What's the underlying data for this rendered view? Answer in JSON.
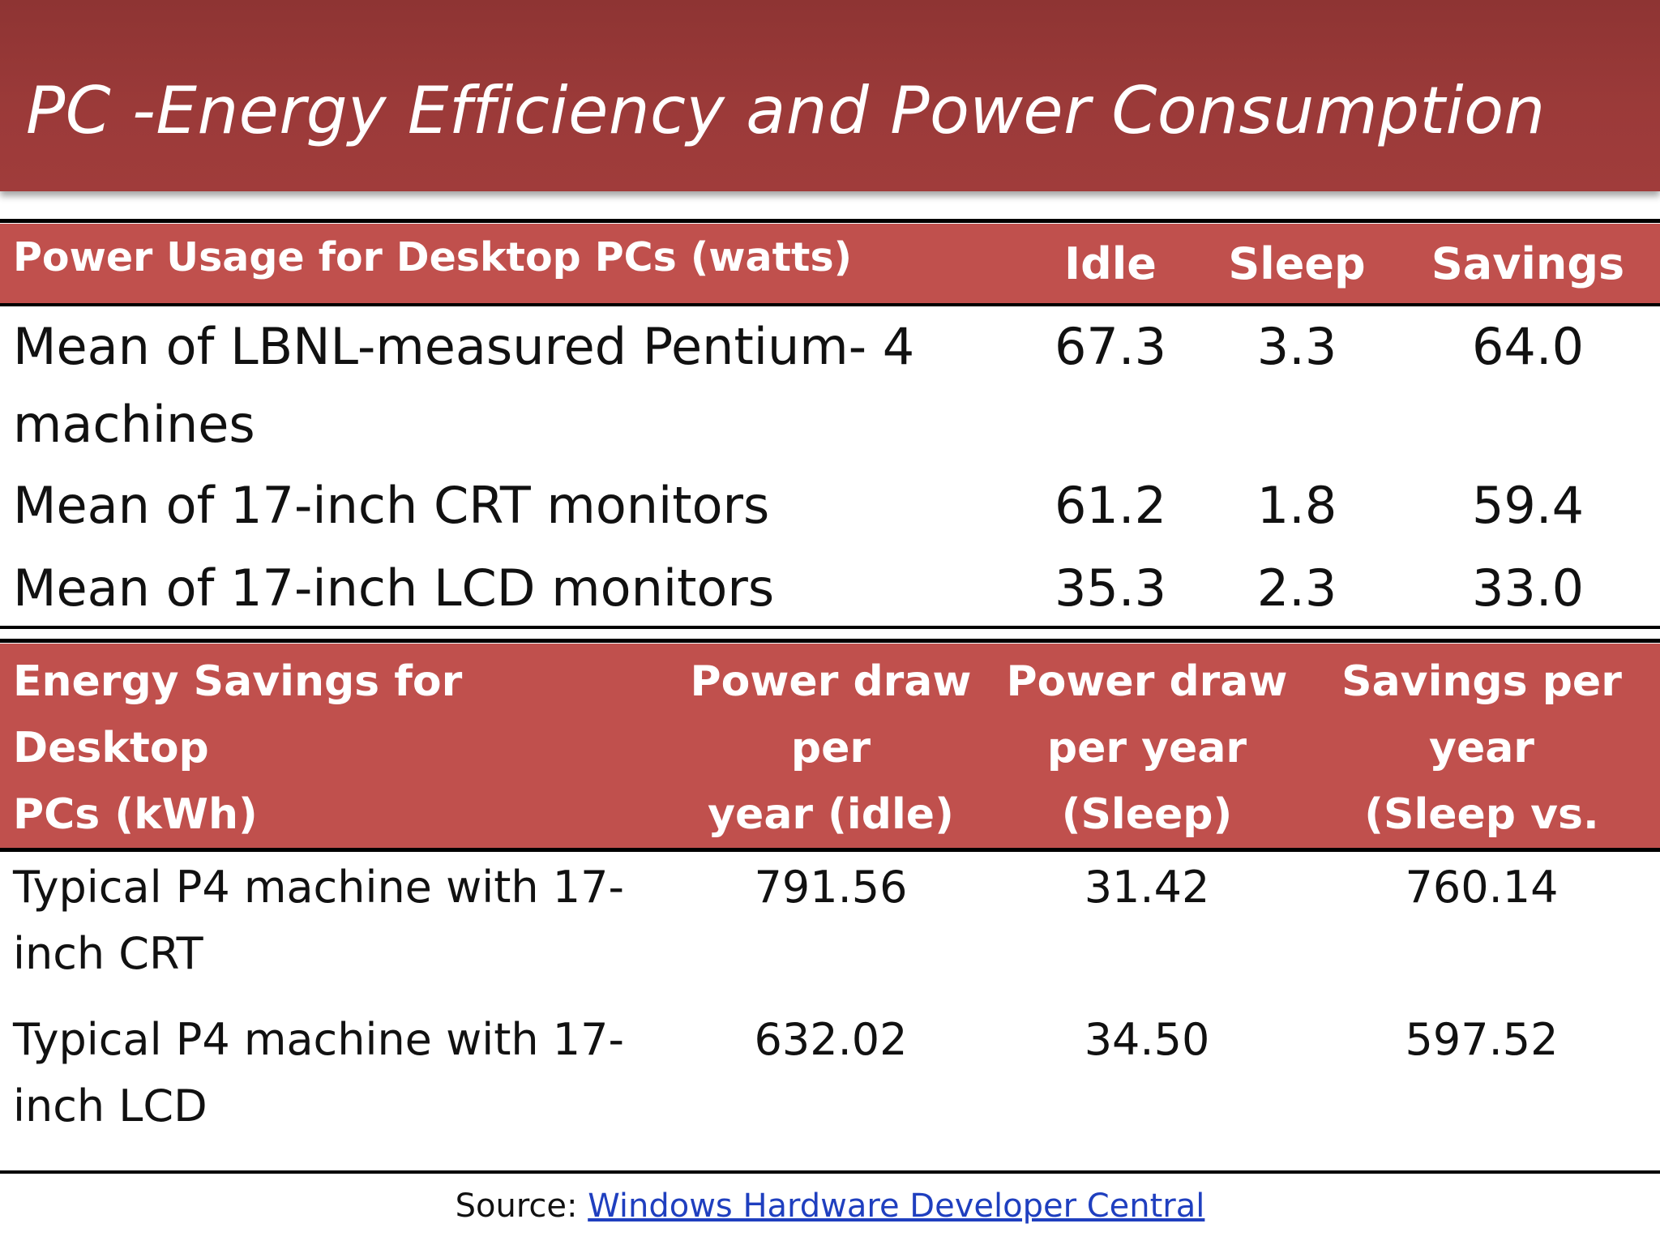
{
  "slide": {
    "title": "PC -Energy Efficiency and Power Consumption"
  },
  "power_usage_table": {
    "headers": {
      "label": "Power Usage for Desktop PCs (watts)",
      "idle": "Idle",
      "sleep": "Sleep",
      "savings": "Savings"
    },
    "rows": [
      {
        "label": "Mean of LBNL-measured Pentium- 4",
        "label_cont": "machines",
        "idle": "67.3",
        "sleep": "3.3",
        "savings": "64.0"
      },
      {
        "label": "Mean of 17-inch CRT monitors",
        "idle": "61.2",
        "sleep": "1.8",
        "savings": "59.4"
      },
      {
        "label": "Mean of 17-inch LCD monitors",
        "idle": "35.3",
        "sleep": "2.3",
        "savings": "33.0"
      }
    ]
  },
  "energy_savings_table": {
    "headers": {
      "label_line1": "Energy Savings for Desktop",
      "label_line2": "PCs (kWh)",
      "idle_line1": "Power draw",
      "idle_line2": "per",
      "idle_line3": "year (idle)",
      "sleep_line1": "Power draw",
      "sleep_line2": "per year",
      "sleep_line3": "(Sleep)",
      "savings_line1": "Savings per",
      "savings_line2": "year",
      "savings_line3": "(Sleep vs. idle)"
    },
    "rows": [
      {
        "label_line1": "Typical P4 machine with 17-",
        "label_line2": "inch CRT",
        "idle": "791.56",
        "sleep": "31.42",
        "savings": "760.14"
      },
      {
        "label_line1": "Typical P4 machine with 17-",
        "label_line2": "inch LCD",
        "idle": "632.02",
        "sleep": "34.50",
        "savings": "597.52"
      }
    ]
  },
  "source": {
    "prefix": "Source:",
    "link_text": "Windows Hardware Developer Central"
  },
  "colors": {
    "title_bar": "#9b3a39",
    "header_band": "#c0504d",
    "link": "#1f3fbf"
  }
}
